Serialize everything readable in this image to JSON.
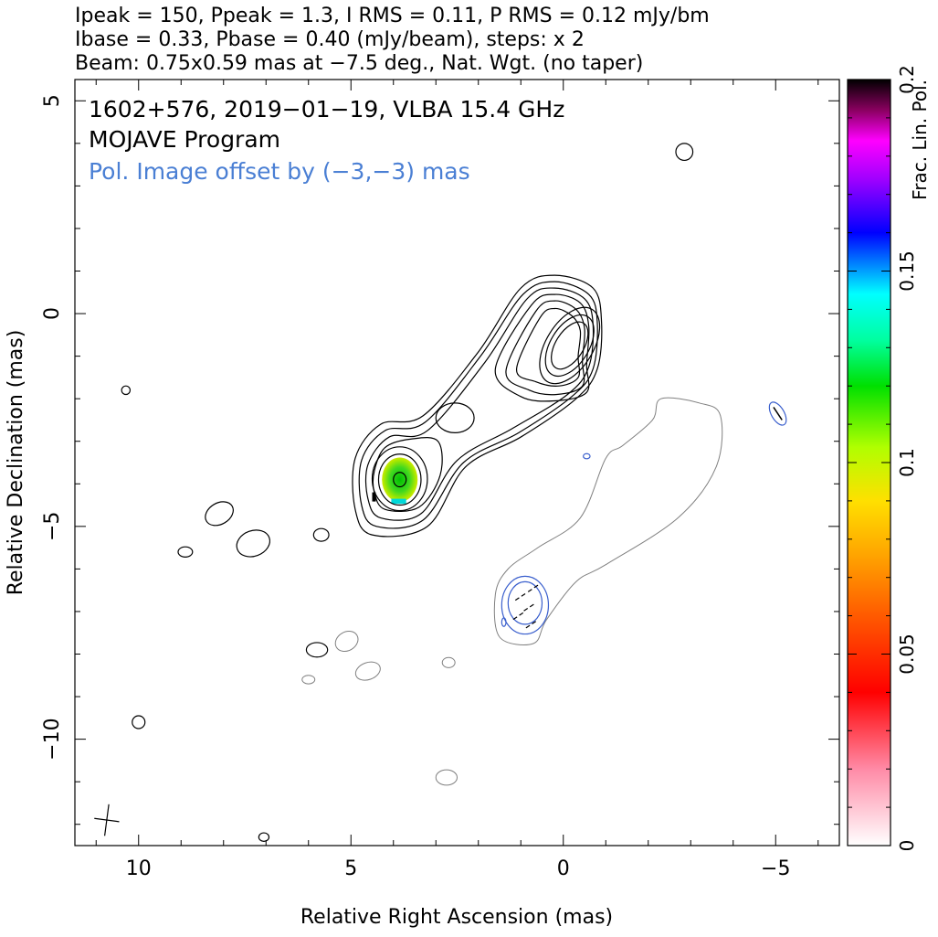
{
  "header": {
    "line1": "Ipeak = 150, Ppeak = 1.3, I RMS = 0.11, P RMS = 0.12 mJy/bm",
    "line2": "Ibase = 0.33, Pbase = 0.40 (mJy/beam), steps: x 2",
    "line3": "Beam: 0.75x0.59 mas at −7.5 deg., Nat. Wgt. (no taper)"
  },
  "annotations": {
    "source": "1602+576, 2019−01−19, VLBA 15.4 GHz",
    "program": "MOJAVE Program",
    "offset_note": "Pol. Image offset by (−3,−3) mas"
  },
  "colors": {
    "frame": "#000000",
    "stokes_i_contour": "#000000",
    "pol_contour": "#3a5fcd",
    "pol_image_contour": "#808080",
    "offset_note": "#4a7fd4"
  },
  "chart_data": {
    "type": "heatmap",
    "xlabel": "Relative Right Ascension (mas)",
    "ylabel": "Relative Declination (mas)",
    "xlim": [
      11.5,
      -6.5
    ],
    "ylim": [
      -12.5,
      5.5
    ],
    "x_ticks": [
      {
        "value": 10,
        "label": "10"
      },
      {
        "value": 5,
        "label": "5"
      },
      {
        "value": 0,
        "label": "0"
      },
      {
        "value": -5,
        "label": "−5"
      }
    ],
    "y_ticks": [
      {
        "value": 5,
        "label": "5"
      },
      {
        "value": 0,
        "label": "0"
      },
      {
        "value": -5,
        "label": "−5"
      },
      {
        "value": -10,
        "label": "−10"
      }
    ],
    "colorbar": {
      "label": "Frac. Lin. Pol.",
      "min": 0,
      "max": 0.2,
      "ticks": [
        {
          "value": 0,
          "label": "0"
        },
        {
          "value": 0.05,
          "label": "0.05"
        },
        {
          "value": 0.1,
          "label": "0.1"
        },
        {
          "value": 0.15,
          "label": "0.15"
        },
        {
          "value": 0.2,
          "label": "0.2"
        }
      ]
    },
    "beam": {
      "major_mas": 0.75,
      "minor_mas": 0.59,
      "pa_deg": -7.5
    },
    "core_position": {
      "x": 3.9,
      "y": -3.9
    },
    "jet_peak_position": {
      "x": -0.1,
      "y": -0.8
    },
    "polarization_offset": {
      "dx": -3,
      "dy": -3
    }
  }
}
